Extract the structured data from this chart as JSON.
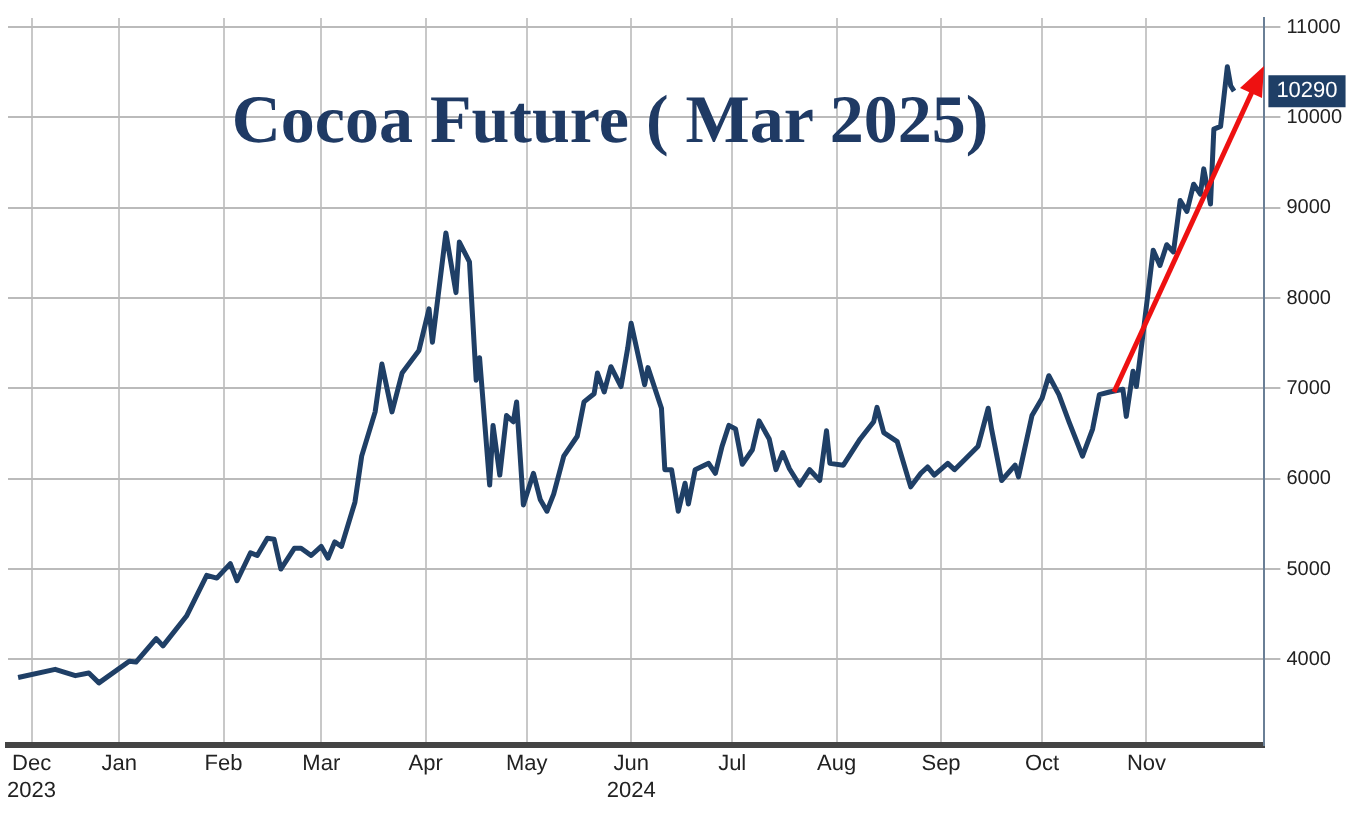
{
  "chart_data": {
    "type": "line",
    "title": "Cocoa Future ( Mar 2025)",
    "x": [
      "2023-12-16",
      "2023-12-27",
      "2024-01-02",
      "2024-01-06",
      "2024-01-09",
      "2024-01-18",
      "2024-01-20",
      "2024-01-26",
      "2024-01-28",
      "2024-02-04",
      "2024-02-10",
      "2024-02-13",
      "2024-02-17",
      "2024-02-19",
      "2024-02-23",
      "2024-02-25",
      "2024-02-28",
      "2024-03-01",
      "2024-03-03",
      "2024-03-07",
      "2024-03-09",
      "2024-03-12",
      "2024-03-15",
      "2024-03-17",
      "2024-03-19",
      "2024-03-21",
      "2024-03-25",
      "2024-03-27",
      "2024-03-31",
      "2024-04-02",
      "2024-04-05",
      "2024-04-08",
      "2024-04-13",
      "2024-04-16",
      "2024-04-17",
      "2024-04-21",
      "2024-04-24",
      "2024-04-25",
      "2024-04-28",
      "2024-04-30",
      "2024-05-01",
      "2024-05-04",
      "2024-05-05",
      "2024-05-07",
      "2024-05-09",
      "2024-05-11",
      "2024-05-12",
      "2024-05-14",
      "2024-05-17",
      "2024-05-19",
      "2024-05-21",
      "2024-05-23",
      "2024-05-26",
      "2024-05-30",
      "2024-06-01",
      "2024-06-04",
      "2024-06-05",
      "2024-06-07",
      "2024-06-09",
      "2024-06-12",
      "2024-06-14",
      "2024-06-15",
      "2024-06-19",
      "2024-06-20",
      "2024-06-24",
      "2024-06-25",
      "2024-06-27",
      "2024-06-29",
      "2024-07-01",
      "2024-07-02",
      "2024-07-04",
      "2024-07-08",
      "2024-07-10",
      "2024-07-12",
      "2024-07-14",
      "2024-07-16",
      "2024-07-18",
      "2024-07-21",
      "2024-07-23",
      "2024-07-26",
      "2024-07-28",
      "2024-07-30",
      "2024-08-01",
      "2024-08-04",
      "2024-08-07",
      "2024-08-10",
      "2024-08-12",
      "2024-08-13",
      "2024-08-17",
      "2024-08-22",
      "2024-08-26",
      "2024-08-27",
      "2024-08-29",
      "2024-09-02",
      "2024-09-06",
      "2024-09-09",
      "2024-09-11",
      "2024-09-13",
      "2024-09-17",
      "2024-09-19",
      "2024-09-22",
      "2024-09-26",
      "2024-09-29",
      "2024-09-30",
      "2024-10-03",
      "2024-10-07",
      "2024-10-08",
      "2024-10-12",
      "2024-10-15",
      "2024-10-17",
      "2024-10-20",
      "2024-10-23",
      "2024-10-27",
      "2024-10-30",
      "2024-11-01",
      "2024-11-04",
      "2024-11-08",
      "2024-11-09",
      "2024-11-11",
      "2024-11-12",
      "2024-11-14",
      "2024-11-17",
      "2024-11-19",
      "2024-11-21",
      "2024-11-23",
      "2024-11-25",
      "2024-11-27",
      "2024-11-29",
      "2024-12-01",
      "2024-12-02",
      "2024-12-04",
      "2024-12-05",
      "2024-12-07",
      "2024-12-09",
      "2024-12-10",
      "2024-12-11"
    ],
    "series": [
      {
        "color": "#1f3f66",
        "values": [
          3800,
          3890,
          3820,
          3850,
          3740,
          3980,
          3970,
          4230,
          4150,
          4480,
          4930,
          4900,
          5060,
          4870,
          5180,
          5150,
          5340,
          5330,
          5000,
          5230,
          5230,
          5150,
          5250,
          5120,
          5300,
          5250,
          5740,
          6250,
          6740,
          7270,
          6740,
          7170,
          7420,
          7880,
          7510,
          8720,
          8060,
          8620,
          8400,
          7090,
          7340,
          5930,
          6590,
          6040,
          6700,
          6630,
          6850,
          5710,
          6060,
          5770,
          5640,
          5830,
          6250,
          6470,
          6850,
          6940,
          7170,
          6960,
          7240,
          7020,
          7450,
          7720,
          7040,
          7230,
          6780,
          6100,
          6100,
          5640,
          5950,
          5720,
          6100,
          6170,
          6060,
          6360,
          6590,
          6550,
          6160,
          6320,
          6640,
          6440,
          6100,
          6290,
          6110,
          5930,
          6100,
          5980,
          6530,
          6170,
          6150,
          6440,
          6630,
          6790,
          6510,
          6410,
          5910,
          6060,
          6130,
          6040,
          6170,
          6100,
          6210,
          6360,
          6780,
          6550,
          5980,
          6150,
          6020,
          6700,
          6890,
          7140,
          6930,
          6630,
          6250,
          6550,
          6930,
          6960,
          6990,
          6690,
          7190,
          7020,
          7610,
          8530,
          8360,
          8590,
          8510,
          9080,
          8960,
          9260,
          9150,
          9430,
          9040,
          9870,
          9900,
          10560,
          10350,
          10290
        ]
      }
    ],
    "xlim": [
      "2023-12-13",
      "2024-12-20"
    ],
    "xticks": [
      {
        "value": "2023-12-20",
        "label": "Dec\n2023"
      },
      {
        "value": "2024-01-15",
        "label": "Jan"
      },
      {
        "value": "2024-02-15",
        "label": "Feb"
      },
      {
        "value": "2024-03-15",
        "label": "Mar"
      },
      {
        "value": "2024-04-15",
        "label": "Apr"
      },
      {
        "value": "2024-05-15",
        "label": "May"
      },
      {
        "value": "2024-06-15",
        "label": "Jun\n2024"
      },
      {
        "value": "2024-07-15",
        "label": "Jul"
      },
      {
        "value": "2024-08-15",
        "label": "Aug"
      },
      {
        "value": "2024-09-15",
        "label": "Sep"
      },
      {
        "value": "2024-10-15",
        "label": "Oct"
      },
      {
        "value": "2024-11-15",
        "label": "Nov"
      }
    ],
    "ylim": [
      3050,
      11100
    ],
    "yticks": [
      4000,
      5000,
      6000,
      7000,
      8000,
      9000,
      10000,
      11000
    ],
    "annotations": [
      {
        "text": "10290",
        "x": "2024-12-11",
        "y": 10290
      }
    ],
    "grid": true,
    "legend": false,
    "marker": "none",
    "line_style": "solid"
  }
}
